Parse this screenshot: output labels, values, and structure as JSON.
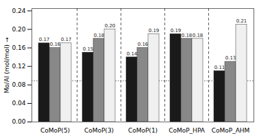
{
  "chart_data": {
    "type": "bar",
    "ylabel": "Mo/Al (mol/mol)",
    "categories": [
      "CoMoP(5)",
      "CoMoP(3)",
      "CoMoP(1)",
      "CoMoP_HPA",
      "CoMoP_AHM"
    ],
    "series": [
      {
        "color": "#1a1a1a",
        "values": [
          0.17,
          0.15,
          0.14,
          0.19,
          0.11
        ],
        "value_labels": [
          "0.17",
          "0.15",
          "0.14",
          "0.19",
          "0.11"
        ]
      },
      {
        "color": "#888888",
        "values": [
          0.16,
          0.18,
          0.16,
          0.18,
          0.13
        ],
        "value_labels": [
          "0.16",
          "0.18",
          "0.16",
          "0.18",
          "0.13"
        ]
      },
      {
        "color": "#f0f0f0",
        "values": [
          0.17,
          0.2,
          0.19,
          0.18,
          0.21
        ],
        "value_labels": [
          "0.17",
          "0.20",
          "0.19",
          "0.18",
          "0.21"
        ]
      }
    ],
    "hline": 0.089,
    "ylim": [
      0.0,
      0.245
    ],
    "yticks": [
      {
        "value": 0.0,
        "label": "0.00"
      },
      0.04,
      0.08,
      0.12,
      0.16,
      {
        "value": 0.2,
        "label": "0.20"
      },
      0.24
    ],
    "data_labels": true,
    "grid": false
  }
}
